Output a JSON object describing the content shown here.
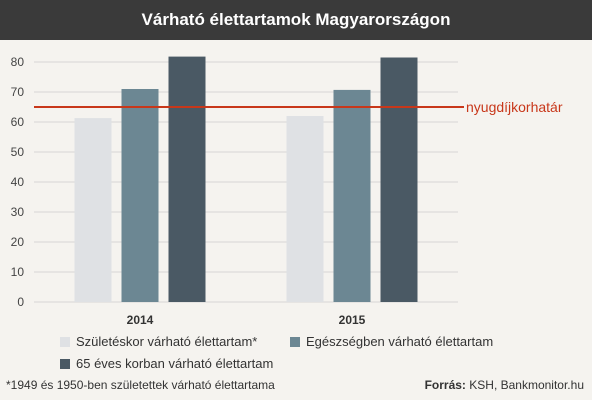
{
  "header": {
    "title": "Várható élettartamok Magyarországon"
  },
  "chart_data": {
    "type": "bar",
    "categories": [
      "2014",
      "2015"
    ],
    "series": [
      {
        "name": "Születéskor várható élettartam*",
        "values": [
          61.3,
          62.0
        ],
        "color": "#dfe1e4"
      },
      {
        "name": "Egészségben várható élettartam",
        "values": [
          71.0,
          70.7
        ],
        "color": "#6c8793"
      },
      {
        "name": "65 éves korban várható élettartam",
        "values": [
          81.8,
          81.5
        ],
        "color": "#4a5964"
      }
    ],
    "ylim": [
      0,
      80
    ],
    "yticks": [
      0,
      10,
      20,
      30,
      40,
      50,
      60,
      70,
      80
    ],
    "grid": true,
    "reference_line": {
      "value": 65,
      "label": "nyugdíjkorhatár",
      "color": "#c8371a"
    }
  },
  "footer": {
    "note": "*1949 és 1950-ben születettek várható élettartama",
    "source_label": "Forrás:",
    "source_value": "KSH, Bankmonitor.hu"
  }
}
